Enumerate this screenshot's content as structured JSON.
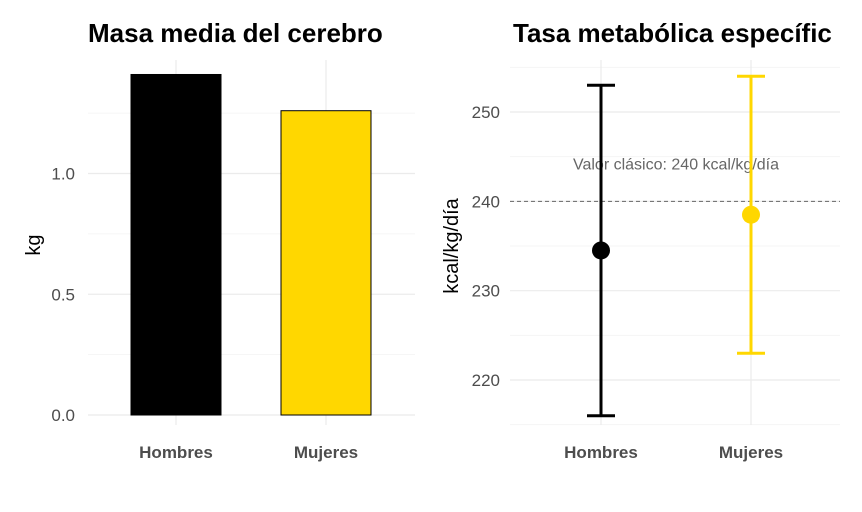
{
  "chart_data": [
    {
      "type": "bar",
      "title": "Masa media del cerebro",
      "xlabel": "",
      "ylabel": "kg",
      "categories": [
        "Hombres",
        "Mujeres"
      ],
      "values": [
        1.41,
        1.26
      ],
      "colors": [
        "#000000",
        "#FFD700"
      ],
      "ylim": [
        0,
        1.41
      ],
      "yticks": [
        0.0,
        0.5,
        1.0
      ],
      "ytick_labels": [
        "0.0",
        "0.5",
        "1.0"
      ],
      "grid": true,
      "legend": "none"
    },
    {
      "type": "errorbar",
      "title": "Tasa metabólica específic",
      "xlabel": "",
      "ylabel": "kcal/kg/día",
      "categories": [
        "Hombres",
        "Mujeres"
      ],
      "means": [
        234.5,
        238.5
      ],
      "lower": [
        216,
        223
      ],
      "upper": [
        253,
        254
      ],
      "colors": [
        "#000000",
        "#FFD700"
      ],
      "ylim": [
        215,
        255.5
      ],
      "yticks": [
        220,
        230,
        240,
        250
      ],
      "ytick_labels": [
        "220",
        "230",
        "240",
        "250"
      ],
      "reference_line": {
        "value": 240,
        "style": "dashed",
        "label": "Valor clásico: 240 kcal/kg/día"
      },
      "grid": true,
      "legend": "none"
    }
  ]
}
